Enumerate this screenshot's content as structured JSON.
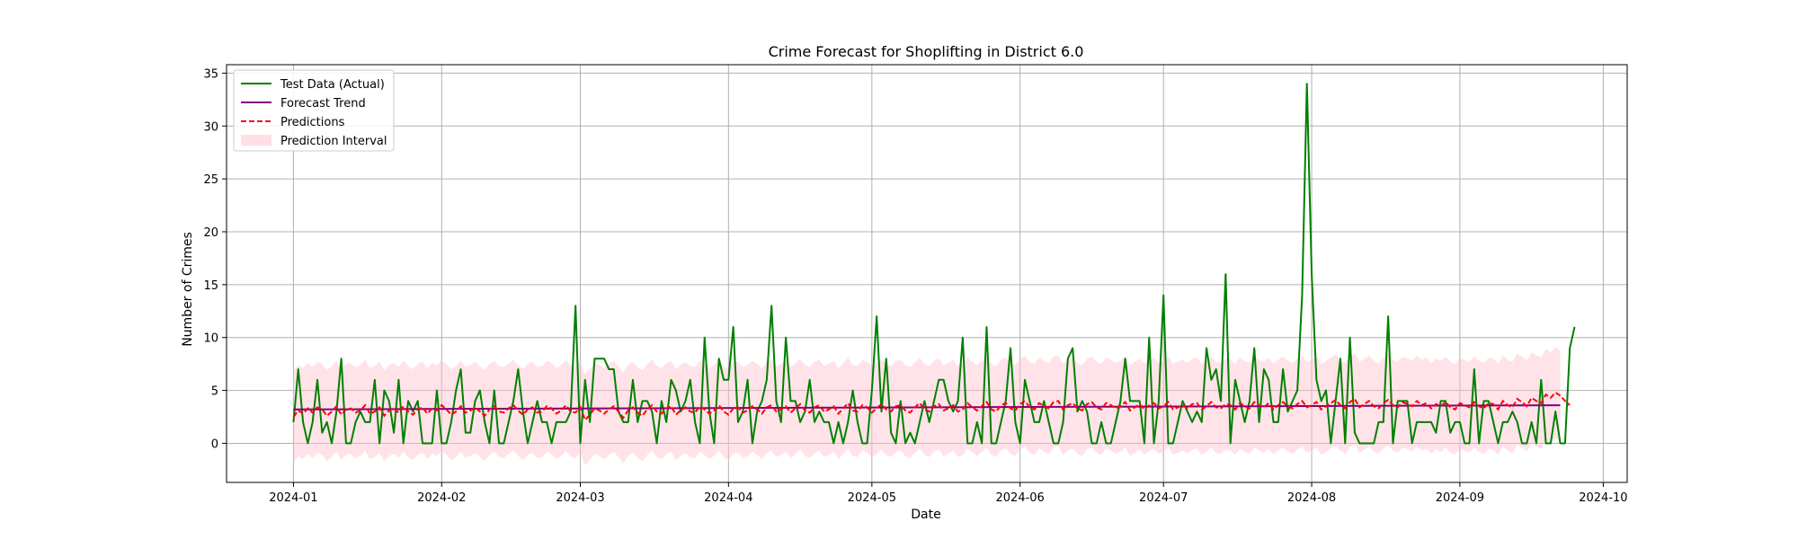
{
  "chart_data": {
    "type": "line",
    "title": "Crime Forecast for Shoplifting in District 6.0",
    "xlabel": "Date",
    "ylabel": "Number of Crimes",
    "x_start": "2024-01-01",
    "x_end": "2024-09-22",
    "xlim": [
      "2023-12-18",
      "2024-10-06"
    ],
    "ylim": [
      -3.7,
      35.8
    ],
    "x_ticks": [
      {
        "date": "2024-01-01",
        "label": "2024-01"
      },
      {
        "date": "2024-02-01",
        "label": "2024-02"
      },
      {
        "date": "2024-03-01",
        "label": "2024-03"
      },
      {
        "date": "2024-04-01",
        "label": "2024-04"
      },
      {
        "date": "2024-05-01",
        "label": "2024-05"
      },
      {
        "date": "2024-06-01",
        "label": "2024-06"
      },
      {
        "date": "2024-07-01",
        "label": "2024-07"
      },
      {
        "date": "2024-08-01",
        "label": "2024-08"
      },
      {
        "date": "2024-09-01",
        "label": "2024-09"
      },
      {
        "date": "2024-10-01",
        "label": "2024-10"
      }
    ],
    "y_ticks": [
      0,
      5,
      10,
      15,
      20,
      25,
      30,
      35
    ],
    "grid": true,
    "legend_position": "top-left",
    "legend": [
      {
        "label": "Test Data (Actual)",
        "kind": "line",
        "color": "#008000",
        "dash": ""
      },
      {
        "label": "Forecast Trend",
        "kind": "line",
        "color": "#800080",
        "dash": ""
      },
      {
        "label": "Predictions",
        "kind": "line",
        "color": "#ff0000",
        "dash": "6,3"
      },
      {
        "label": "Prediction Interval",
        "kind": "band",
        "color": "#ffc0cb"
      }
    ],
    "series": [
      {
        "name": "Test Data (Actual)",
        "color": "#008000",
        "values": [
          2,
          7,
          2,
          0,
          2,
          6,
          1,
          2,
          0,
          3,
          8,
          0,
          0,
          2,
          3,
          2,
          2,
          6,
          0,
          5,
          4,
          1,
          6,
          0,
          4,
          3,
          4,
          0,
          0,
          0,
          5,
          0,
          0,
          2,
          5,
          7,
          1,
          1,
          4,
          5,
          2,
          0,
          5,
          0,
          0,
          2,
          4,
          7,
          3,
          0,
          2,
          4,
          2,
          2,
          0,
          2,
          2,
          2,
          3,
          13,
          0,
          6,
          2,
          8,
          8,
          8,
          7,
          7,
          3,
          2,
          2,
          6,
          2,
          4,
          4,
          3,
          0,
          4,
          2,
          6,
          5,
          3,
          4,
          6,
          2,
          0,
          10,
          3,
          0,
          8,
          6,
          6,
          11,
          2,
          3,
          6,
          0,
          3,
          4,
          6,
          13,
          4,
          2,
          10,
          4,
          4,
          2,
          3,
          6,
          2,
          3,
          2,
          2,
          0,
          2,
          0,
          2,
          5,
          2,
          0,
          0,
          5,
          12,
          3,
          8,
          1,
          0,
          4,
          0,
          1,
          0,
          2,
          4,
          2,
          4,
          6,
          6,
          4,
          3,
          4,
          10,
          0,
          0,
          2,
          0,
          11,
          0,
          0,
          2,
          4,
          9,
          2,
          0,
          6,
          4,
          2,
          2,
          4,
          2,
          0,
          0,
          2,
          8,
          9,
          3,
          4,
          3,
          0,
          0,
          2,
          0,
          0,
          2,
          4,
          8,
          4,
          4,
          4,
          0,
          10,
          0,
          4,
          14,
          0,
          0,
          2,
          4,
          3,
          2,
          3,
          2,
          9,
          6,
          7,
          4,
          16,
          0,
          6,
          4,
          2,
          4,
          9,
          2,
          7,
          6,
          2,
          2,
          7,
          3,
          4,
          5,
          14,
          34,
          16,
          6,
          4,
          5,
          0,
          4,
          8,
          0,
          10,
          1,
          0,
          0,
          0,
          0,
          2,
          2,
          12,
          0,
          4,
          4,
          4,
          0,
          2,
          2,
          2,
          2,
          1,
          4,
          4,
          1,
          2,
          2,
          0,
          0,
          7,
          0,
          4,
          4,
          2,
          0,
          2,
          2,
          3,
          2,
          0,
          0,
          2,
          0,
          6,
          0,
          0,
          3,
          0,
          0,
          9,
          11
        ]
      },
      {
        "name": "Forecast Trend",
        "color": "#800080",
        "start": 3.2,
        "end": 3.6
      },
      {
        "name": "Predictions",
        "color": "#ff0000",
        "values": [
          2.5,
          3.1,
          2.8,
          3.3,
          2.9,
          3.4,
          3.2,
          2.6,
          3.0,
          3.5,
          2.7,
          3.2,
          3.3,
          2.9,
          3.1,
          3.6,
          2.8,
          3.0,
          3.4,
          2.6,
          3.1,
          3.3,
          2.9,
          3.5,
          3.0,
          2.7,
          3.2,
          3.4,
          2.8,
          3.3,
          3.1,
          3.6,
          3.2,
          2.7,
          3.0,
          3.5,
          2.9,
          3.1,
          3.4,
          3.0,
          2.6,
          3.2,
          3.5,
          3.0,
          2.9,
          3.3,
          3.6,
          3.1,
          2.7,
          3.2,
          3.4,
          2.9,
          3.0,
          3.5,
          3.3,
          2.8,
          3.1,
          3.6,
          3.0,
          2.9,
          3.4,
          2.2,
          2.7,
          3.3,
          3.1,
          2.8,
          3.2,
          3.5,
          3.0,
          2.4,
          3.1,
          3.4,
          2.9,
          2.6,
          3.2,
          3.6,
          3.0,
          2.8,
          3.3,
          3.5,
          2.7,
          3.1,
          3.4,
          3.0,
          2.9,
          3.5,
          3.2,
          2.8,
          3.1,
          3.6,
          3.0,
          2.7,
          3.3,
          3.4,
          2.9,
          3.1,
          3.5,
          3.2,
          2.8,
          3.4,
          3.6,
          3.0,
          3.2,
          3.5,
          2.9,
          3.3,
          3.7,
          3.1,
          2.9,
          3.4,
          3.6,
          3.0,
          3.2,
          3.5,
          2.8,
          3.3,
          3.8,
          3.1,
          3.0,
          3.6,
          3.4,
          2.9,
          3.3,
          3.7,
          3.2,
          3.0,
          3.5,
          3.6,
          3.1,
          2.9,
          3.4,
          3.8,
          3.2,
          3.0,
          3.5,
          3.7,
          3.1,
          3.3,
          3.6,
          3.0,
          3.2,
          3.8,
          3.4,
          3.1,
          3.5,
          3.9,
          3.2,
          3.0,
          3.6,
          3.8,
          3.3,
          3.1,
          3.7,
          4.0,
          3.4,
          3.2,
          3.8,
          3.5,
          3.3,
          3.9,
          4.0,
          3.2,
          3.6,
          3.8,
          3.3,
          3.1,
          3.7,
          3.9,
          3.4,
          3.2,
          3.8,
          3.6,
          3.3,
          3.5,
          3.9,
          3.1,
          3.4,
          3.7,
          3.2,
          3.6,
          3.8,
          3.3,
          3.5,
          3.9,
          3.2,
          3.4,
          3.6,
          3.3,
          3.7,
          3.8,
          3.2,
          3.5,
          3.9,
          3.4,
          3.3,
          3.7,
          3.6,
          3.2,
          3.8,
          3.5,
          3.3,
          3.9,
          3.6,
          3.4,
          3.8,
          3.2,
          3.6,
          3.9,
          3.5,
          3.3,
          3.7,
          4.0,
          3.4,
          3.6,
          3.9,
          3.2,
          3.5,
          3.8,
          4.1,
          3.6,
          3.3,
          3.9,
          4.2,
          3.4,
          3.7,
          4.0,
          3.5,
          3.3,
          3.8,
          4.1,
          3.6,
          3.4,
          3.9,
          3.7,
          3.5,
          4.0,
          3.6,
          3.8,
          3.3,
          3.7,
          3.5,
          3.9,
          3.4,
          3.2,
          3.8,
          3.6,
          3.4,
          3.9,
          3.5,
          3.3,
          3.8,
          3.7,
          3.2,
          4.0,
          3.6,
          3.4,
          4.2,
          3.9,
          3.5,
          4.3,
          4.0,
          3.8,
          4.6,
          4.3,
          4.8,
          4.5,
          4.0,
          3.6
        ]
      }
    ],
    "interval": {
      "name": "Prediction Interval",
      "color": "#ffc0cb",
      "half_width": 4.3
    }
  }
}
